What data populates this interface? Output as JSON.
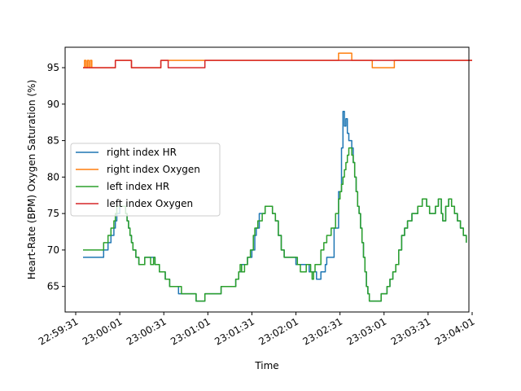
{
  "chart_data": {
    "type": "line",
    "title": "",
    "xlabel": "Time",
    "ylabel": "Heart-Rate (BPM)   Oxygen Saturation (%)",
    "x_ticks": [
      "22:59:31",
      "23:00:01",
      "23:00:31",
      "23:01:01",
      "23:01:31",
      "23:02:01",
      "23:02:31",
      "23:03:01",
      "23:03:31",
      "23:04:01"
    ],
    "y_ticks": [
      65,
      70,
      75,
      80,
      85,
      90,
      95
    ],
    "xlim": [
      "22:59:31",
      "23:04:06"
    ],
    "ylim": [
      61.5,
      97.8
    ],
    "grid": false,
    "legend_position": "center-left",
    "series": [
      {
        "name": "right index HR",
        "color": "#1f77b4",
        "points": [
          [
            "22:59:36",
            69
          ],
          [
            "22:59:44",
            69
          ],
          [
            "22:59:49",
            69
          ],
          [
            "22:59:50",
            70
          ],
          [
            "22:59:53",
            71
          ],
          [
            "22:59:55",
            72
          ],
          [
            "22:59:57",
            73
          ],
          [
            "22:59:58",
            74
          ],
          [
            "22:59:59",
            75
          ],
          [
            "23:00:01",
            76
          ],
          [
            "23:00:05",
            75
          ],
          [
            "23:00:06",
            74
          ],
          [
            "23:00:07",
            73
          ],
          [
            "23:00:08",
            72
          ],
          [
            "23:00:09",
            71
          ],
          [
            "23:00:10",
            70
          ],
          [
            "23:00:12",
            69
          ],
          [
            "23:00:14",
            68
          ],
          [
            "23:00:18",
            69
          ],
          [
            "23:00:24",
            69
          ],
          [
            "23:00:25",
            68
          ],
          [
            "23:00:28",
            67
          ],
          [
            "23:00:32",
            66
          ],
          [
            "23:00:35",
            65
          ],
          [
            "23:00:39",
            65
          ],
          [
            "23:00:41",
            64
          ],
          [
            "23:00:48",
            64
          ],
          [
            "23:00:53",
            63
          ],
          [
            "23:00:59",
            64
          ],
          [
            "23:01:10",
            65
          ],
          [
            "23:01:20",
            66
          ],
          [
            "23:01:22",
            67
          ],
          [
            "23:01:24",
            68
          ],
          [
            "23:01:28",
            69
          ],
          [
            "23:01:31",
            70
          ],
          [
            "23:01:33",
            72
          ],
          [
            "23:01:34",
            73
          ],
          [
            "23:01:36",
            75
          ],
          [
            "23:01:38",
            75
          ],
          [
            "23:01:40",
            76
          ],
          [
            "23:01:45",
            75
          ],
          [
            "23:01:47",
            74
          ],
          [
            "23:01:49",
            72
          ],
          [
            "23:01:51",
            70
          ],
          [
            "23:01:53",
            69
          ],
          [
            "23:01:57",
            69
          ],
          [
            "23:02:01",
            68
          ],
          [
            "23:02:05",
            68
          ],
          [
            "23:02:08",
            68
          ],
          [
            "23:02:10",
            67
          ],
          [
            "23:02:12",
            67
          ],
          [
            "23:02:15",
            66
          ],
          [
            "23:02:18",
            67
          ],
          [
            "23:02:21",
            68
          ],
          [
            "23:02:22",
            69
          ],
          [
            "23:02:25",
            69
          ],
          [
            "23:02:27",
            73
          ],
          [
            "23:02:30",
            78
          ],
          [
            "23:02:32",
            84
          ],
          [
            "23:02:33",
            89
          ],
          [
            "23:02:34",
            87
          ],
          [
            "23:02:35",
            88
          ],
          [
            "23:02:36",
            86
          ],
          [
            "23:02:37",
            85
          ],
          [
            "23:02:39",
            84
          ],
          [
            "23:02:40",
            82
          ],
          [
            "23:02:41",
            80
          ],
          [
            "23:02:42",
            78
          ],
          [
            "23:02:43",
            76
          ],
          [
            "23:02:44",
            75
          ],
          [
            "23:02:45",
            73
          ],
          [
            "23:02:46",
            71
          ],
          [
            "23:02:47",
            69
          ],
          [
            "23:02:48",
            67
          ],
          [
            "23:02:49",
            65
          ],
          [
            "23:02:50",
            64
          ],
          [
            "23:02:51",
            63
          ],
          [
            "23:02:59",
            64
          ],
          [
            "23:03:03",
            65
          ],
          [
            "23:03:05",
            66
          ],
          [
            "23:03:07",
            67
          ],
          [
            "23:03:09",
            68
          ],
          [
            "23:03:11",
            70
          ],
          [
            "23:03:13",
            72
          ],
          [
            "23:03:15",
            73
          ],
          [
            "23:03:17",
            74
          ],
          [
            "23:03:20",
            75
          ],
          [
            "23:03:24",
            76
          ],
          [
            "23:03:27",
            77
          ],
          [
            "23:03:30",
            76
          ],
          [
            "23:03:32",
            75
          ],
          [
            "23:03:36",
            76
          ],
          [
            "23:03:38",
            77
          ],
          [
            "23:03:40",
            75
          ],
          [
            "23:03:41",
            74
          ],
          [
            "23:03:43",
            76
          ],
          [
            "23:03:45",
            77
          ],
          [
            "23:03:47",
            76
          ],
          [
            "23:03:49",
            75
          ],
          [
            "23:03:51",
            74
          ],
          [
            "23:03:53",
            73
          ],
          [
            "23:03:55",
            72
          ],
          [
            "23:03:57",
            71
          ]
        ]
      },
      {
        "name": "right index Oxygen",
        "color": "#ff7f0e",
        "points": [
          [
            "22:59:36",
            95
          ],
          [
            "22:59:37",
            96
          ],
          [
            "22:59:38",
            95
          ],
          [
            "22:59:39",
            96
          ],
          [
            "22:59:40",
            95
          ],
          [
            "22:59:41",
            96
          ],
          [
            "22:59:42",
            95
          ],
          [
            "22:59:57",
            95
          ],
          [
            "22:59:58",
            96
          ],
          [
            "23:00:08",
            96
          ],
          [
            "23:00:09",
            95
          ],
          [
            "23:00:28",
            95
          ],
          [
            "23:00:29",
            96
          ],
          [
            "23:00:33",
            96
          ],
          [
            "23:01:01",
            96
          ],
          [
            "23:02:26",
            96
          ],
          [
            "23:02:30",
            97
          ],
          [
            "23:02:38",
            97
          ],
          [
            "23:02:39",
            96
          ],
          [
            "23:02:52",
            96
          ],
          [
            "23:02:53",
            95
          ],
          [
            "23:03:07",
            95
          ],
          [
            "23:03:08",
            96
          ],
          [
            "23:04:01",
            96
          ]
        ]
      },
      {
        "name": "left index HR",
        "color": "#2ca02c",
        "points": [
          [
            "22:59:36",
            70
          ],
          [
            "22:59:44",
            70
          ],
          [
            "22:59:49",
            70
          ],
          [
            "22:59:50",
            71
          ],
          [
            "22:59:53",
            72
          ],
          [
            "22:59:55",
            73
          ],
          [
            "22:59:57",
            74
          ],
          [
            "22:59:58",
            75
          ],
          [
            "22:59:59",
            76
          ],
          [
            "23:00:02",
            76
          ],
          [
            "23:00:05",
            75
          ],
          [
            "23:00:06",
            74
          ],
          [
            "23:00:07",
            73
          ],
          [
            "23:00:08",
            72
          ],
          [
            "23:00:09",
            71
          ],
          [
            "23:00:10",
            70
          ],
          [
            "23:00:12",
            69
          ],
          [
            "23:00:14",
            68
          ],
          [
            "23:00:18",
            69
          ],
          [
            "23:00:22",
            68
          ],
          [
            "23:00:24",
            69
          ],
          [
            "23:00:25",
            68
          ],
          [
            "23:00:28",
            67
          ],
          [
            "23:00:32",
            66
          ],
          [
            "23:00:35",
            65
          ],
          [
            "23:00:43",
            64
          ],
          [
            "23:00:53",
            63
          ],
          [
            "23:00:59",
            64
          ],
          [
            "23:01:10",
            65
          ],
          [
            "23:01:20",
            66
          ],
          [
            "23:01:22",
            67
          ],
          [
            "23:01:23",
            68
          ],
          [
            "23:01:24",
            67
          ],
          [
            "23:01:26",
            68
          ],
          [
            "23:01:28",
            69
          ],
          [
            "23:01:30",
            70
          ],
          [
            "23:01:32",
            72
          ],
          [
            "23:01:33",
            73
          ],
          [
            "23:01:35",
            74
          ],
          [
            "23:01:37",
            74
          ],
          [
            "23:01:38",
            75
          ],
          [
            "23:01:40",
            76
          ],
          [
            "23:01:45",
            75
          ],
          [
            "23:01:47",
            74
          ],
          [
            "23:01:49",
            72
          ],
          [
            "23:01:51",
            70
          ],
          [
            "23:01:53",
            69
          ],
          [
            "23:02:00",
            69
          ],
          [
            "23:02:02",
            68
          ],
          [
            "23:02:04",
            67
          ],
          [
            "23:02:06",
            67
          ],
          [
            "23:02:08",
            68
          ],
          [
            "23:02:11",
            67
          ],
          [
            "23:02:12",
            66
          ],
          [
            "23:02:13",
            67
          ],
          [
            "23:02:14",
            68
          ],
          [
            "23:02:18",
            70
          ],
          [
            "23:02:20",
            71
          ],
          [
            "23:02:22",
            72
          ],
          [
            "23:02:25",
            73
          ],
          [
            "23:02:28",
            75
          ],
          [
            "23:02:30",
            77
          ],
          [
            "23:02:31",
            78
          ],
          [
            "23:02:32",
            79
          ],
          [
            "23:02:33",
            80
          ],
          [
            "23:02:34",
            81
          ],
          [
            "23:02:35",
            82
          ],
          [
            "23:02:36",
            83
          ],
          [
            "23:02:37",
            84
          ],
          [
            "23:02:39",
            83
          ],
          [
            "23:02:40",
            82
          ],
          [
            "23:02:41",
            80
          ],
          [
            "23:02:42",
            78
          ],
          [
            "23:02:43",
            76
          ],
          [
            "23:02:44",
            75
          ],
          [
            "23:02:45",
            73
          ],
          [
            "23:02:46",
            71
          ],
          [
            "23:02:47",
            69
          ],
          [
            "23:02:48",
            67
          ],
          [
            "23:02:49",
            65
          ],
          [
            "23:02:50",
            64
          ],
          [
            "23:02:51",
            63
          ],
          [
            "23:02:59",
            64
          ],
          [
            "23:03:03",
            65
          ],
          [
            "23:03:05",
            66
          ],
          [
            "23:03:07",
            67
          ],
          [
            "23:03:09",
            68
          ],
          [
            "23:03:11",
            70
          ],
          [
            "23:03:13",
            72
          ],
          [
            "23:03:15",
            73
          ],
          [
            "23:03:17",
            74
          ],
          [
            "23:03:20",
            75
          ],
          [
            "23:03:24",
            76
          ],
          [
            "23:03:27",
            77
          ],
          [
            "23:03:30",
            76
          ],
          [
            "23:03:32",
            75
          ],
          [
            "23:03:36",
            76
          ],
          [
            "23:03:38",
            77
          ],
          [
            "23:03:40",
            75
          ],
          [
            "23:03:41",
            74
          ],
          [
            "23:03:43",
            76
          ],
          [
            "23:03:45",
            77
          ],
          [
            "23:03:47",
            76
          ],
          [
            "23:03:49",
            75
          ],
          [
            "23:03:51",
            74
          ],
          [
            "23:03:53",
            73
          ],
          [
            "23:03:55",
            72
          ],
          [
            "23:03:57",
            71
          ]
        ]
      },
      {
        "name": "left index Oxygen",
        "color": "#d62728",
        "points": [
          [
            "22:59:36",
            95
          ],
          [
            "22:59:57",
            95
          ],
          [
            "22:59:58",
            96
          ],
          [
            "23:00:08",
            96
          ],
          [
            "23:00:09",
            95
          ],
          [
            "23:00:28",
            95
          ],
          [
            "23:00:29",
            96
          ],
          [
            "23:00:33",
            96
          ],
          [
            "23:00:34",
            95
          ],
          [
            "23:00:58",
            95
          ],
          [
            "23:00:59",
            96
          ],
          [
            "23:04:01",
            96
          ]
        ]
      }
    ]
  }
}
